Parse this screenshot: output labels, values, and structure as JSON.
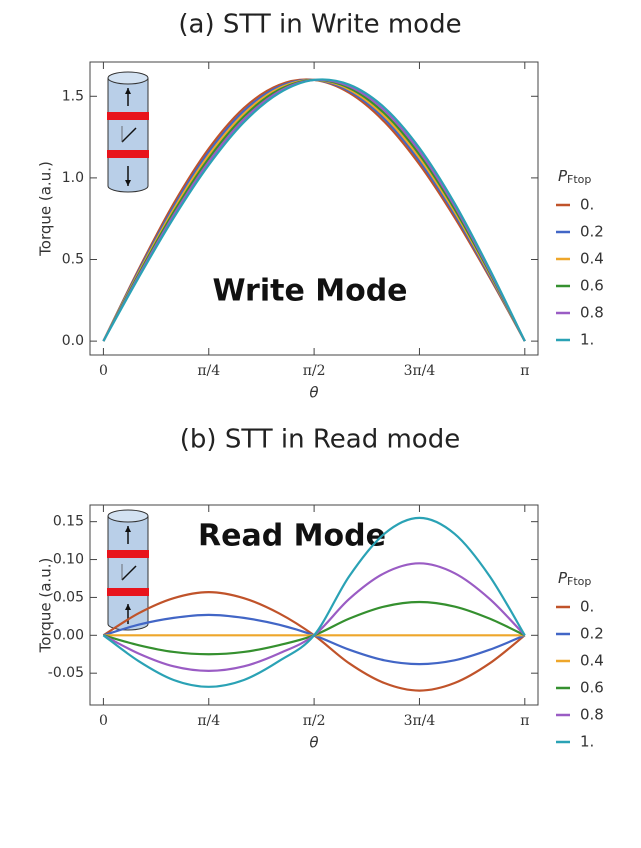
{
  "chart_data": [
    {
      "type": "line",
      "title": "(a) STT in Write mode",
      "xlabel": "θ",
      "ylabel": "Torque (a.u.)",
      "annotation": "Write Mode",
      "legend_title": "P",
      "legend_title_sub": "Ftop",
      "x": [
        0,
        0.2618,
        0.5236,
        0.7854,
        1.0472,
        1.309,
        1.5708,
        1.8326,
        2.0944,
        2.3562,
        2.618,
        2.8798,
        3.1416
      ],
      "series": [
        {
          "name": "0.",
          "color": "#c0532a",
          "values": [
            0,
            0.438,
            0.842,
            1.179,
            1.428,
            1.569,
            1.6,
            1.521,
            1.344,
            1.083,
            0.758,
            0.39,
            0
          ]
        },
        {
          "name": "0.2",
          "color": "#4266c6",
          "values": [
            0,
            0.428,
            0.824,
            1.159,
            1.41,
            1.559,
            1.6,
            1.531,
            1.362,
            1.103,
            0.776,
            0.4,
            0
          ]
        },
        {
          "name": "0.4",
          "color": "#eea62a",
          "values": [
            0,
            0.418,
            0.807,
            1.139,
            1.393,
            1.549,
            1.6,
            1.541,
            1.379,
            1.123,
            0.793,
            0.41,
            0
          ]
        },
        {
          "name": "0.6",
          "color": "#35902f",
          "values": [
            0,
            0.408,
            0.79,
            1.119,
            1.376,
            1.539,
            1.6,
            1.551,
            1.396,
            1.143,
            0.81,
            0.42,
            0
          ]
        },
        {
          "name": "0.8",
          "color": "#9a5cc4",
          "values": [
            0,
            0.398,
            0.772,
            1.099,
            1.358,
            1.529,
            1.6,
            1.561,
            1.414,
            1.163,
            0.828,
            0.43,
            0
          ]
        },
        {
          "name": "1.",
          "color": "#2aa2b5",
          "values": [
            0,
            0.388,
            0.755,
            1.079,
            1.341,
            1.519,
            1.6,
            1.571,
            1.431,
            1.183,
            0.845,
            0.44,
            0
          ]
        }
      ],
      "xlim": [
        -0.1,
        3.24
      ],
      "ylim": [
        -0.085,
        1.71
      ],
      "xticks": [
        0,
        {
          "value": 0.7854,
          "label": "π/4"
        },
        {
          "value": 1.5708,
          "label": "π/2"
        },
        {
          "value": 2.3562,
          "label": "3π/4"
        },
        {
          "value": 3.1416,
          "label": "π"
        }
      ],
      "yticks": [
        {
          "value": 0,
          "label": "0.0"
        },
        0.5,
        {
          "value": 1,
          "label": "1.0"
        },
        1.5
      ]
    },
    {
      "type": "line",
      "title": "(b) STT in Read mode",
      "xlabel": "θ",
      "ylabel": "Torque (a.u.)",
      "annotation": "Read Mode",
      "legend_title": "P",
      "legend_title_sub": "Ftop",
      "x": [
        0,
        0.2618,
        0.5236,
        0.7854,
        1.0472,
        1.309,
        1.5708,
        1.8326,
        2.0944,
        2.3562,
        2.618,
        2.8798,
        3.1416
      ],
      "series": [
        {
          "name": "0.",
          "color": "#c0532a",
          "values": [
            0,
            0.029,
            0.049,
            0.057,
            0.049,
            0.029,
            0,
            -0.037,
            -0.063,
            -0.073,
            -0.063,
            -0.037,
            0
          ]
        },
        {
          "name": "0.2",
          "color": "#4266c6",
          "values": [
            0,
            0.014,
            0.023,
            0.027,
            0.023,
            0.014,
            0,
            -0.019,
            -0.033,
            -0.038,
            -0.033,
            -0.019,
            0
          ]
        },
        {
          "name": "0.4",
          "color": "#eea62a",
          "values": [
            0,
            0,
            0,
            0,
            0,
            0,
            0,
            0,
            0,
            0,
            0,
            0,
            0
          ]
        },
        {
          "name": "0.6",
          "color": "#35902f",
          "values": [
            0,
            -0.013,
            -0.022,
            -0.025,
            -0.022,
            -0.013,
            0,
            0.022,
            0.038,
            0.044,
            0.038,
            0.022,
            0
          ]
        },
        {
          "name": "0.8",
          "color": "#9a5cc4",
          "values": [
            0,
            -0.024,
            -0.041,
            -0.047,
            -0.041,
            -0.024,
            0,
            0.048,
            0.082,
            0.095,
            0.082,
            0.048,
            0
          ]
        },
        {
          "name": "1.",
          "color": "#2aa2b5",
          "values": [
            0,
            -0.034,
            -0.059,
            -0.068,
            -0.059,
            -0.034,
            0,
            0.078,
            0.134,
            0.155,
            0.134,
            0.078,
            0
          ]
        }
      ],
      "xlim": [
        -0.1,
        3.24
      ],
      "ylim": [
        -0.092,
        0.172
      ],
      "xticks": [
        0,
        {
          "value": 0.7854,
          "label": "π/4"
        },
        {
          "value": 1.5708,
          "label": "π/2"
        },
        {
          "value": 2.3562,
          "label": "3π/4"
        },
        {
          "value": 3.1416,
          "label": "π"
        }
      ],
      "yticks": [
        {
          "value": -0.05,
          "label": "-0.05"
        },
        {
          "value": 0,
          "label": "0.00"
        },
        0.05,
        {
          "value": 0.1,
          "label": "0.10"
        },
        0.15
      ]
    }
  ]
}
